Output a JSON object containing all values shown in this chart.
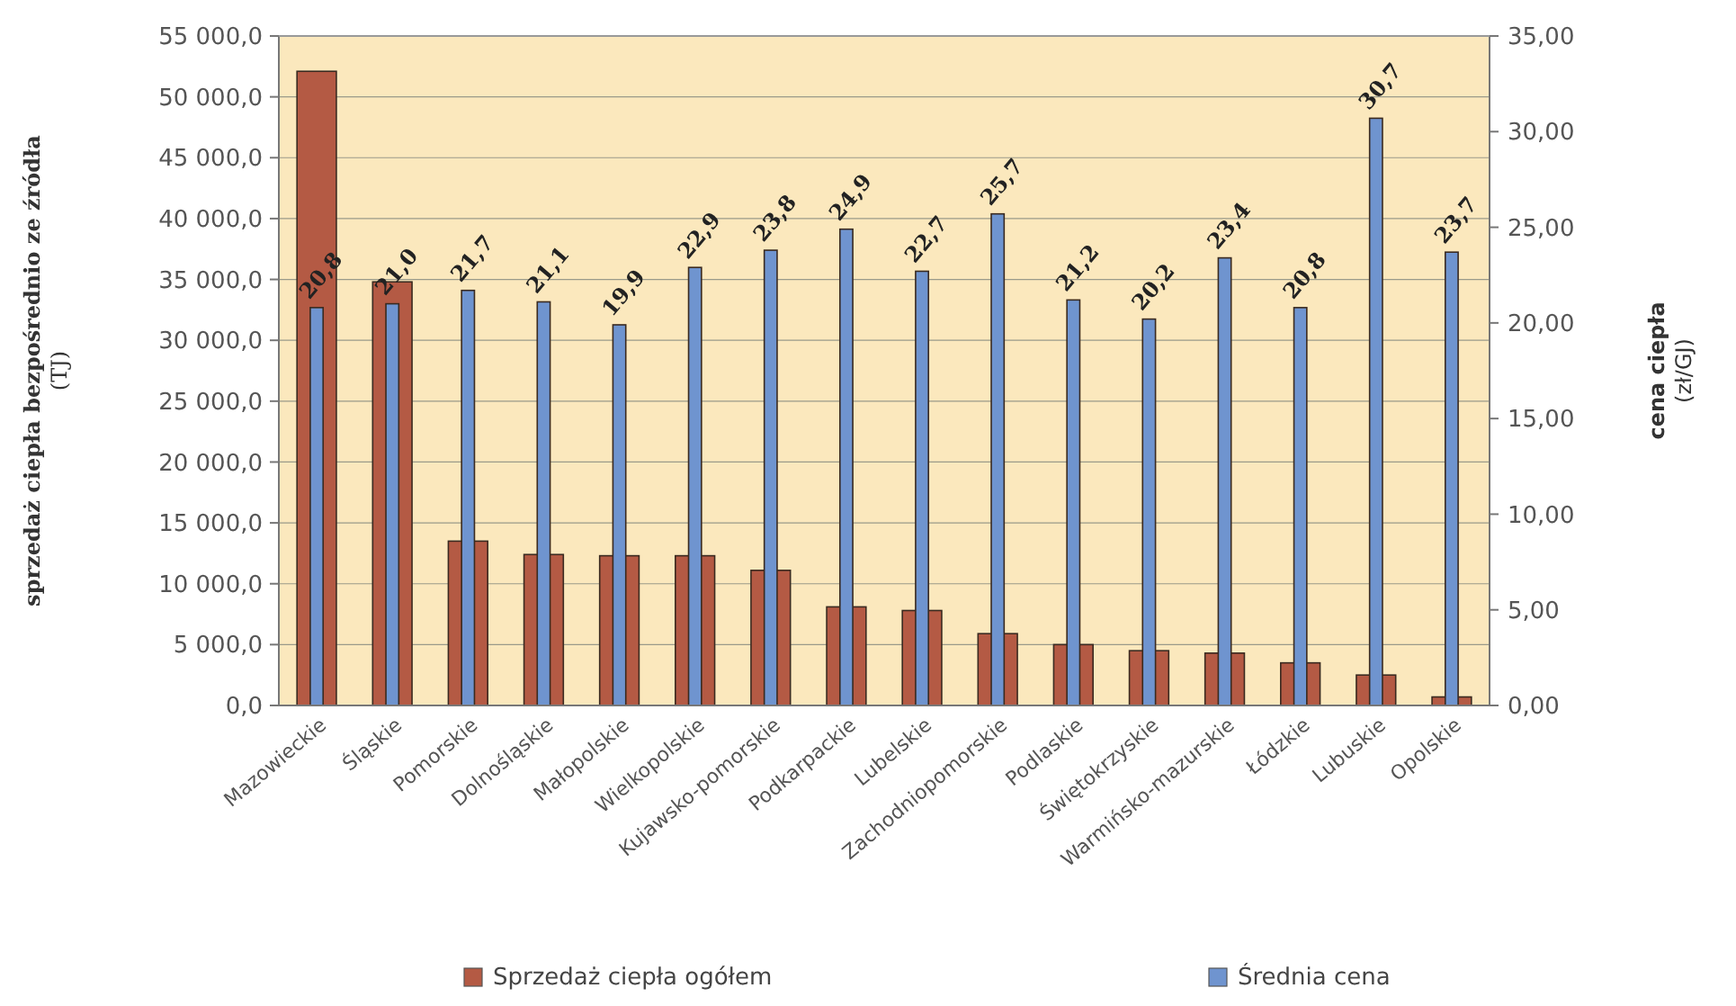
{
  "chart_data": {
    "type": "bar",
    "ylabel": "sprzedaż ciepła bezpośrednio ze źródła\n(TJ)",
    "y2label": "cena ciepła\n(zł/GJ)",
    "categories": [
      "Mazowieckie",
      "Śląskie",
      "Pomorskie",
      "Dolnośląskie",
      "Małopolskie",
      "Wielkopolskie",
      "Kujawsko-pomorskie",
      "Podkarpackie",
      "Lubelskie",
      "Zachodniopomorskie",
      "Podlaskie",
      "Świętokrzyskie",
      "Warmińsko-mazurskie",
      "Łódzkie",
      "Lubuskie",
      "Opolskie"
    ],
    "series": [
      {
        "name": "Sprzedaż ciepła ogółem",
        "color": "#b45a44",
        "values": [
          52100,
          34800,
          13500,
          12400,
          12300,
          12300,
          11100,
          8100,
          7800,
          5900,
          5000,
          4500,
          4300,
          3500,
          2500,
          700
        ]
      },
      {
        "name": "Średnia cena",
        "color": "#6f94cf",
        "axis": "y2",
        "values": [
          20.8,
          21.0,
          21.7,
          21.1,
          19.9,
          22.9,
          23.8,
          24.9,
          22.7,
          25.7,
          21.2,
          20.2,
          23.4,
          20.8,
          30.7,
          23.7
        ],
        "value_labels": [
          "20,8",
          "21,0",
          "21,7",
          "21,1",
          "19,9",
          "22,9",
          "23,8",
          "24,9",
          "22,7",
          "25,7",
          "21,2",
          "20,2",
          "23,4",
          "20,8",
          "30,7",
          "23,7"
        ]
      }
    ],
    "ylim": [
      0,
      55000
    ],
    "yticks": [
      {
        "value": 0,
        "label": "0,0"
      },
      {
        "value": 5000,
        "label": "5 000,0"
      },
      {
        "value": 10000,
        "label": "10 000,0"
      },
      {
        "value": 15000,
        "label": "15 000,0"
      },
      {
        "value": 20000,
        "label": "20 000,0"
      },
      {
        "value": 25000,
        "label": "25 000,0"
      },
      {
        "value": 30000,
        "label": "30 000,0"
      },
      {
        "value": 35000,
        "label": "35 000,0"
      },
      {
        "value": 40000,
        "label": "40 000,0"
      },
      {
        "value": 45000,
        "label": "45 000,0"
      },
      {
        "value": 50000,
        "label": "50 000,0"
      },
      {
        "value": 55000,
        "label": "55 000,0"
      }
    ],
    "y2lim": [
      0,
      35
    ],
    "y2ticks": [
      {
        "value": 0,
        "label": "0,00"
      },
      {
        "value": 5,
        "label": "5,00"
      },
      {
        "value": 10,
        "label": "10,00"
      },
      {
        "value": 15,
        "label": "15,00"
      },
      {
        "value": 20,
        "label": "20,00"
      },
      {
        "value": 25,
        "label": "25,00"
      },
      {
        "value": 30,
        "label": "30,00"
      },
      {
        "value": 35,
        "label": "35,00"
      }
    ],
    "grid": "y",
    "legend": "bottom"
  }
}
